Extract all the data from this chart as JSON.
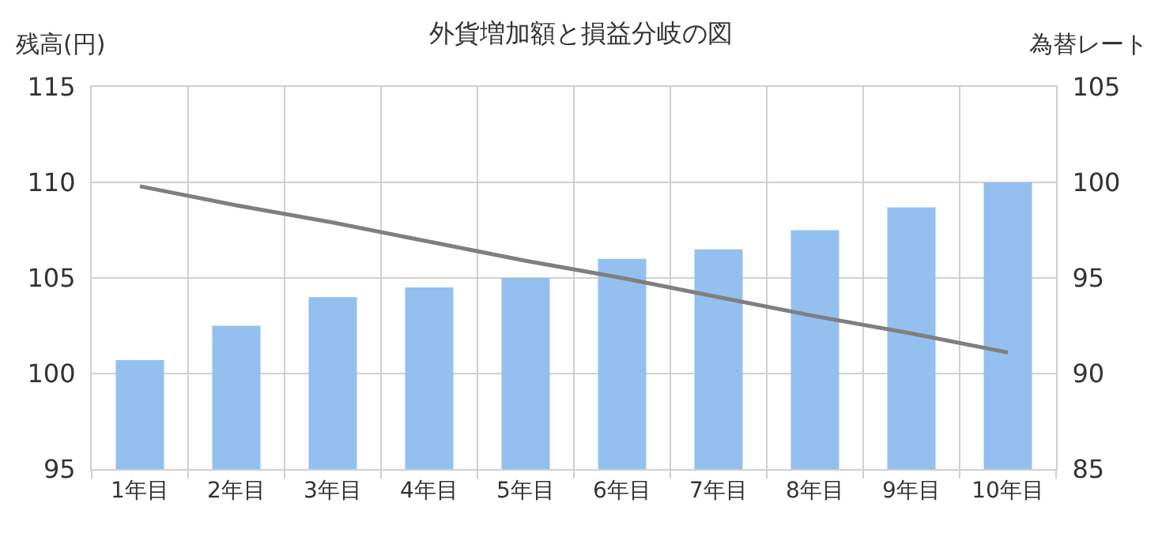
{
  "chart_data": {
    "type": "bar",
    "title": "外貨増加額と損益分岐の図",
    "ylabel": "残高(円)",
    "y2label": "為替レート",
    "categories": [
      "1年目",
      "2年目",
      "3年目",
      "4年目",
      "5年目",
      "6年目",
      "7年目",
      "8年目",
      "9年目",
      "10年目"
    ],
    "series": [
      {
        "color": "#93c0ee",
        "values": [
          100.7,
          102.5,
          104,
          104.5,
          105,
          106,
          106.5,
          107.5,
          108.7,
          110
        ]
      },
      {
        "type": "line",
        "axis": "y2",
        "color": "#7f7f7f",
        "marker": "none",
        "line_style": "solid",
        "values": [
          99.8,
          98.8,
          97.9,
          96.9,
          95.9,
          95.0,
          94.0,
          93.0,
          92.1,
          91.1
        ]
      }
    ],
    "ylim": [
      95,
      115
    ],
    "yticks": [
      95,
      100,
      105,
      110,
      115
    ],
    "y2lim": [
      85,
      105
    ],
    "y2ticks": [
      85,
      90,
      95,
      100,
      105
    ],
    "grid": true
  }
}
